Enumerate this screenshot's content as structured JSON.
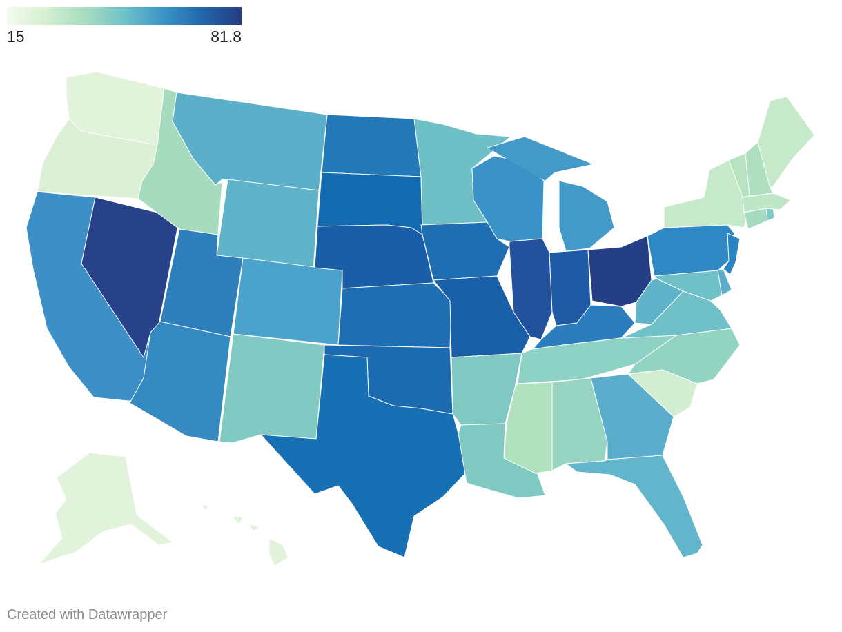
{
  "legend": {
    "min_label": "15",
    "max_label": "81.8",
    "colors": [
      "#f5fbee",
      "#d5efd0",
      "#a8dcc0",
      "#6fc2c8",
      "#3a95c6",
      "#2166ac",
      "#253b80"
    ]
  },
  "credit": "Created with Datawrapper",
  "map_data": {
    "type": "choropleth",
    "region": "United States",
    "range": [
      15,
      81.8
    ],
    "states": [
      {
        "id": "WA",
        "color": "#e2f3dc"
      },
      {
        "id": "OR",
        "color": "#dcf0d6"
      },
      {
        "id": "CA",
        "color": "#3d8fc5"
      },
      {
        "id": "NV",
        "color": "#284289"
      },
      {
        "id": "ID",
        "color": "#a6dbbd"
      },
      {
        "id": "MT",
        "color": "#5bafc9"
      },
      {
        "id": "WY",
        "color": "#5fb4ca"
      },
      {
        "id": "UT",
        "color": "#2f7fbd"
      },
      {
        "id": "AZ",
        "color": "#358ac2"
      },
      {
        "id": "CO",
        "color": "#4ba3cb"
      },
      {
        "id": "NM",
        "color": "#80cac3"
      },
      {
        "id": "ND",
        "color": "#2379b7"
      },
      {
        "id": "SD",
        "color": "#126bb0"
      },
      {
        "id": "NE",
        "color": "#1b5ea8"
      },
      {
        "id": "KS",
        "color": "#1f6eb2"
      },
      {
        "id": "OK",
        "color": "#1c6ab0"
      },
      {
        "id": "TX",
        "color": "#1770b3"
      },
      {
        "id": "MN",
        "color": "#6fc0c6"
      },
      {
        "id": "IA",
        "color": "#1f6eb2"
      },
      {
        "id": "MO",
        "color": "#1a60a9"
      },
      {
        "id": "AR",
        "color": "#80c9c3"
      },
      {
        "id": "LA",
        "color": "#80c9c3"
      },
      {
        "id": "WI",
        "color": "#3b92c6"
      },
      {
        "id": "IL",
        "color": "#22519d"
      },
      {
        "id": "MI",
        "color": "#4399c8"
      },
      {
        "id": "IN",
        "color": "#1f5aa4"
      },
      {
        "id": "OH",
        "color": "#253f86"
      },
      {
        "id": "KY",
        "color": "#2b7dbd"
      },
      {
        "id": "TN",
        "color": "#8dd2c4"
      },
      {
        "id": "MS",
        "color": "#b0e0bd"
      },
      {
        "id": "AL",
        "color": "#97d4c2"
      },
      {
        "id": "GA",
        "color": "#5aaecb"
      },
      {
        "id": "FL",
        "color": "#62b5ca"
      },
      {
        "id": "SC",
        "color": "#d2edcf"
      },
      {
        "id": "NC",
        "color": "#93d3c2"
      },
      {
        "id": "VA",
        "color": "#6fc0c7"
      },
      {
        "id": "WV",
        "color": "#5fb4ca"
      },
      {
        "id": "PA",
        "color": "#2e88c4"
      },
      {
        "id": "NY",
        "color": "#c6e9c9"
      },
      {
        "id": "NJ",
        "color": "#2b84c2"
      },
      {
        "id": "DE",
        "color": "#5aaecb"
      },
      {
        "id": "MD",
        "color": "#6fc0c7"
      },
      {
        "id": "CT",
        "color": "#a6dbc1"
      },
      {
        "id": "RI",
        "color": "#7fc9c3"
      },
      {
        "id": "MA",
        "color": "#bfe6c6"
      },
      {
        "id": "VT",
        "color": "#b8e3c1"
      },
      {
        "id": "NH",
        "color": "#aedfbf"
      },
      {
        "id": "ME",
        "color": "#c6e9c9"
      },
      {
        "id": "AK",
        "color": "#e2f3dc"
      },
      {
        "id": "HI",
        "color": "#e2f3dc"
      }
    ]
  }
}
